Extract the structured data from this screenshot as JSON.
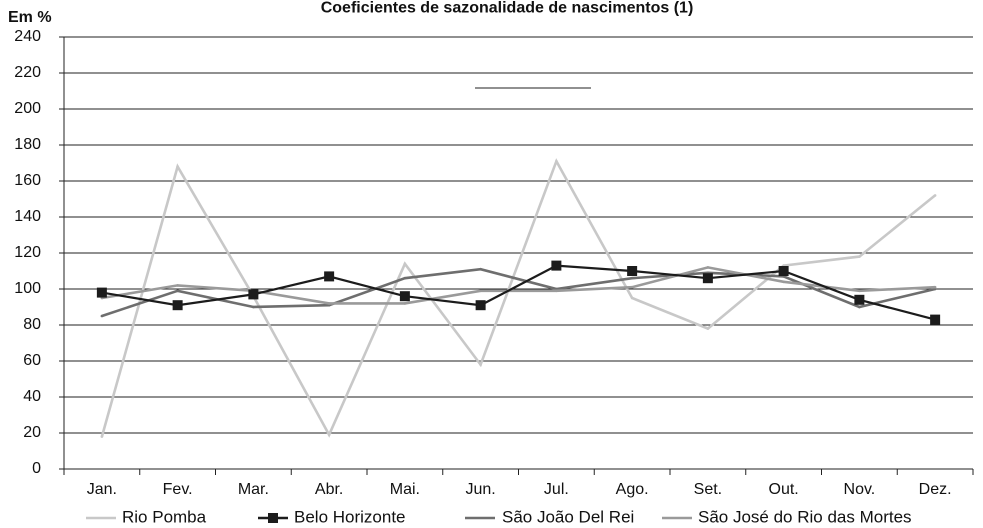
{
  "chart_data": {
    "type": "line",
    "title": "Coeficientes de sazonalidade de nascimentos (1)",
    "ylabel": "Em %",
    "xlabel": "",
    "ylim": [
      0,
      240
    ],
    "yticks": [
      0,
      20,
      40,
      60,
      80,
      100,
      120,
      140,
      160,
      180,
      200,
      220,
      240
    ],
    "grid": true,
    "legend_position": "bottom",
    "categories": [
      "Jan.",
      "Fev.",
      "Mar.",
      "Abr.",
      "Mai.",
      "Jun.",
      "Jul.",
      "Ago.",
      "Set.",
      "Out.",
      "Nov.",
      "Dez."
    ],
    "series": [
      {
        "name": "Rio Pomba",
        "color": "#c8c8c8",
        "marker": "none",
        "values": [
          18,
          168,
          96,
          19,
          114,
          58,
          171,
          95,
          78,
          113,
          118,
          152
        ]
      },
      {
        "name": "Belo Horizonte",
        "color": "#1c1c1c",
        "marker": "square",
        "values": [
          98,
          91,
          97,
          107,
          96,
          91,
          113,
          110,
          106,
          110,
          94,
          83
        ]
      },
      {
        "name": "São João Del Rei",
        "color": "#6e6e6e",
        "marker": "none",
        "values": [
          85,
          99,
          90,
          91,
          106,
          111,
          100,
          106,
          109,
          107,
          90,
          100
        ]
      },
      {
        "name": "São José do Rio das Mortes",
        "color": "#9a9a9a",
        "marker": "none",
        "values": [
          95,
          102,
          99,
          92,
          92,
          99,
          99,
          101,
          112,
          104,
          99,
          101
        ]
      }
    ]
  }
}
